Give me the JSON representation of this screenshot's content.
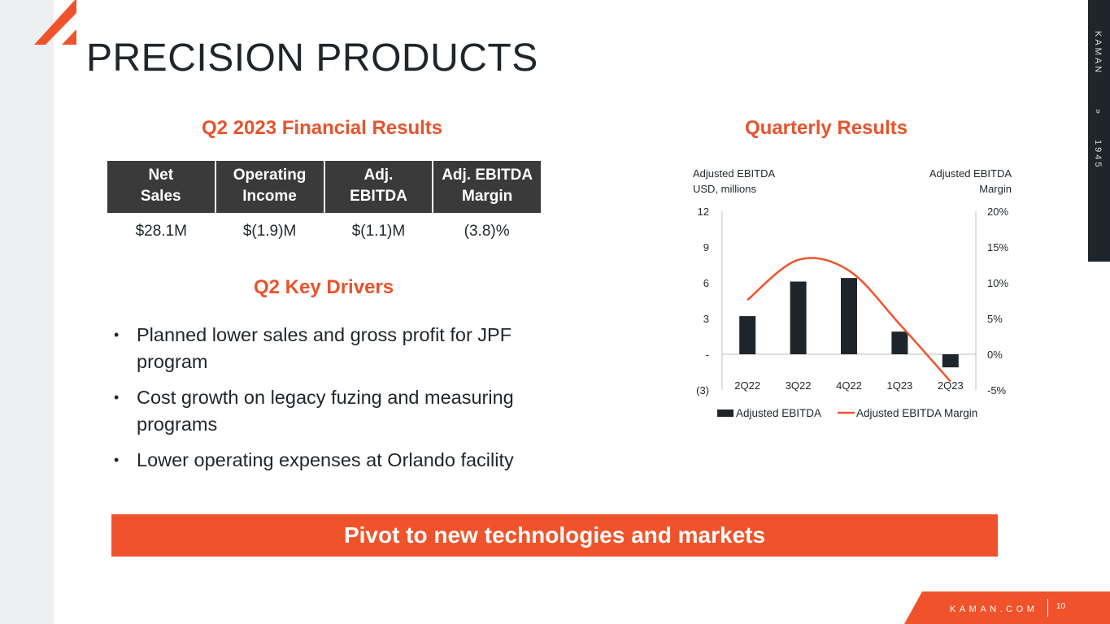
{
  "page": {
    "title": "PRECISION PRODUCTS",
    "brand_tab": {
      "name": "KAMAN",
      "arrows": "»",
      "year": "1945"
    },
    "footer": {
      "site": "KAMAN.COM",
      "page_number": "10"
    }
  },
  "financial": {
    "heading": "Q2 2023 Financial Results",
    "headers": [
      [
        "Net",
        "Sales"
      ],
      [
        "Operating",
        "Income"
      ],
      [
        "Adj.",
        "EBITDA"
      ],
      [
        "Adj. EBITDA",
        "Margin"
      ]
    ],
    "values": [
      "$28.1M",
      "$(1.9)M",
      "$(1.1)M",
      "(3.8)%"
    ]
  },
  "drivers": {
    "heading": "Q2 Key Drivers",
    "bullet": "•",
    "items": [
      "Planned lower sales and gross profit for JPF program",
      "Cost growth on legacy fuzing and measuring programs",
      "Lower operating expenses at Orlando facility"
    ]
  },
  "banner": {
    "text": "Pivot to new technologies and markets"
  },
  "chart_data": {
    "type": "bar",
    "title": "Quarterly Results",
    "categories": [
      "2Q22",
      "3Q22",
      "4Q22",
      "1Q23",
      "2Q23"
    ],
    "series": [
      {
        "name": "Adjusted EBITDA",
        "kind": "bar",
        "axis": "left",
        "values": [
          3.2,
          6.1,
          6.4,
          1.9,
          -1.1
        ],
        "color": "#1f262b"
      },
      {
        "name": "Adjusted EBITDA Margin",
        "kind": "line",
        "axis": "right",
        "values": [
          7.6,
          13.2,
          11.7,
          4.2,
          -3.8
        ],
        "color": "#f0532b"
      }
    ],
    "y_left": {
      "label": [
        "Adjusted EBITDA",
        "USD, millions"
      ],
      "ylim": [
        -3,
        12
      ],
      "ticks": [
        12,
        9,
        6,
        3,
        0,
        -3
      ],
      "tick_labels": [
        "12",
        "9",
        "6",
        "3",
        "-",
        "(3)"
      ]
    },
    "y_right": {
      "label": [
        "Adjusted EBITDA",
        "Margin"
      ],
      "ylim": [
        -5,
        20
      ],
      "ticks": [
        20,
        15,
        10,
        5,
        0,
        -5
      ],
      "tick_labels": [
        "20%",
        "15%",
        "10%",
        "5%",
        "0%",
        "-5%"
      ]
    },
    "legend": "bottom"
  },
  "colors": {
    "accent": "#f0532b",
    "dark": "#1f262b",
    "header_bg": "#3b3a3a",
    "left_bar": "#eeeff0"
  }
}
